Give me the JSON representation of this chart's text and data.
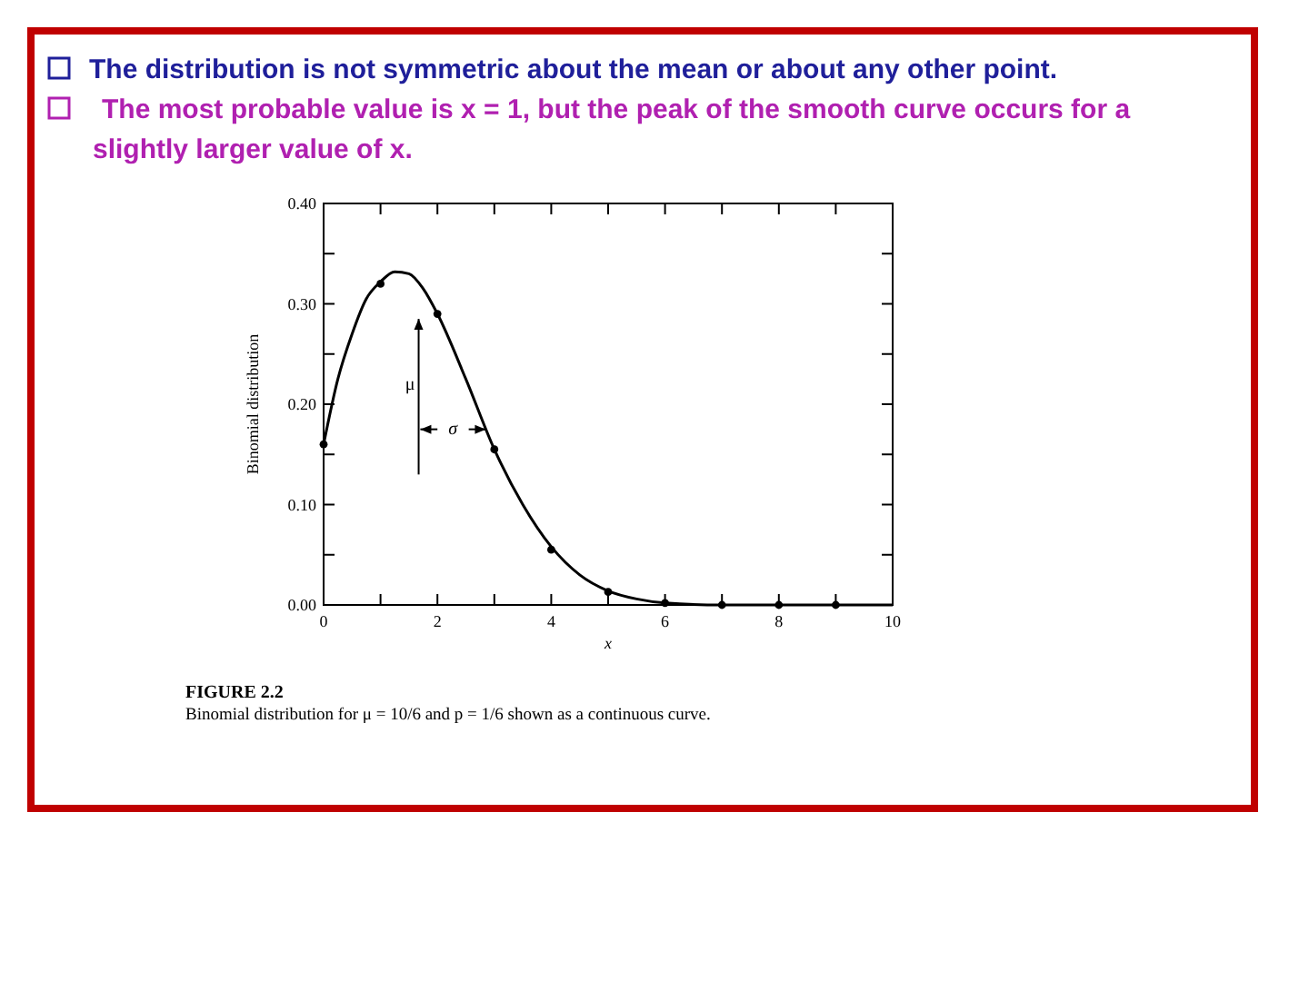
{
  "chart_data": {
    "type": "scatter",
    "title": "The distribution is not symmetric about the mean or about any other point.",
    "subtitle": "The most probable value is x = 1, but the peak of the smooth curve occurs for a slightly larger value of x.",
    "xlabel": "x",
    "ylabel": "Binomial distribution",
    "series": [
      {
        "type": "line",
        "color": "#000000",
        "marker": "none",
        "x": [
          0,
          0.25,
          0.5,
          0.75,
          1,
          1.25,
          1.5,
          1.75,
          2,
          2.5,
          3,
          3.5,
          4,
          4.5,
          5,
          5.5,
          6,
          7,
          8,
          9,
          10
        ],
        "values": [
          0.16,
          0.225,
          0.27,
          0.305,
          0.322,
          0.332,
          0.33,
          0.315,
          0.29,
          0.225,
          0.155,
          0.1,
          0.058,
          0.03,
          0.014,
          0.006,
          0.002,
          0,
          0,
          0,
          0
        ]
      },
      {
        "type": "scatter",
        "color": "#000000",
        "x": [
          0,
          1,
          2,
          3,
          4,
          5,
          6,
          7,
          8,
          9
        ],
        "values": [
          0.16,
          0.32,
          0.29,
          0.155,
          0.055,
          0.013,
          0.002,
          0,
          0,
          0
        ]
      }
    ],
    "marker": "circle",
    "line_style": "solid",
    "xlim": [
      0,
      10
    ],
    "xticks": [
      0,
      {
        "value": 1,
        "label": null
      },
      2,
      {
        "value": 3,
        "label": null
      },
      4,
      {
        "value": 5,
        "label": null
      },
      6,
      {
        "value": 7,
        "label": null
      },
      8,
      {
        "value": 9,
        "label": null
      },
      10
    ],
    "ylim": [
      0,
      0.4
    ],
    "yticks": [
      {
        "value": 0,
        "label": "0.00"
      },
      {
        "value": 0.05,
        "label": null
      },
      {
        "value": 0.1,
        "label": "0.10"
      },
      {
        "value": 0.15,
        "label": null
      },
      {
        "value": 0.2,
        "label": "0.20"
      },
      {
        "value": 0.25,
        "label": null
      },
      {
        "value": 0.3,
        "label": "0.30"
      },
      {
        "value": 0.35,
        "label": null
      },
      {
        "value": 0.4,
        "label": "0.40"
      }
    ],
    "annotations": [
      "μ",
      "σ",
      "FIGURE 2.2",
      "Binomial distribution for μ = 10/6 and p = 1/6 shown as a continuous curve."
    ]
  }
}
